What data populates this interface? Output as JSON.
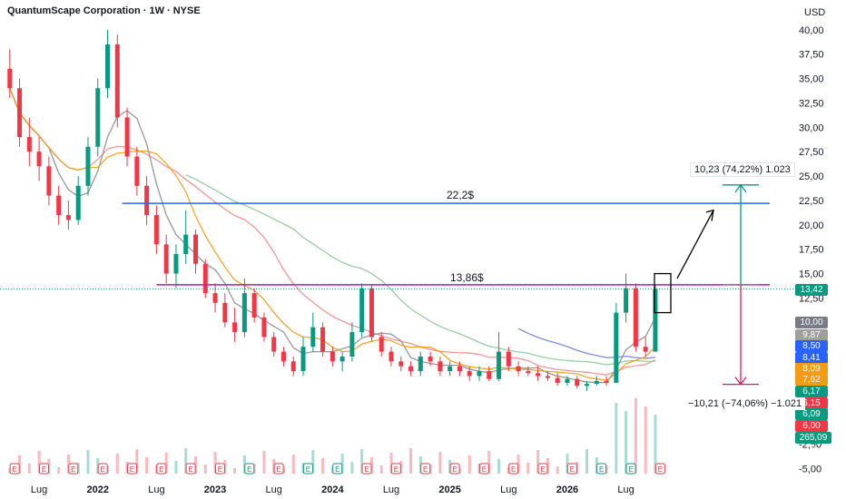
{
  "header": {
    "title": "QuantumScape Corporation · 1W · NYSE",
    "currency": "USD"
  },
  "colors": {
    "up": "#089981",
    "down": "#f23645",
    "resistance_blue": "#2962ff",
    "resistance_purple": "#9c27b0",
    "ma_orange": "#f39c12",
    "ma_gray": "#8c8c8c",
    "ma_red": "#f28b8b",
    "ma_green": "#8cc79a",
    "ma_blue": "#6b7fd6",
    "target_green": "#089981",
    "target_red": "#d81b60"
  },
  "chart_data": {
    "type": "candlestick",
    "title": "QuantumScape Corporation · 1W · NYSE",
    "ylabel": "USD",
    "ylim": [
      -5.5,
      41
    ],
    "y_ticks": [
      "40,00",
      "37,50",
      "35,00",
      "32,50",
      "30,00",
      "27,50",
      "25,00",
      "22,50",
      "20,00",
      "17,50",
      "15,00",
      "12,50",
      "10,00",
      "7,50",
      "5,00",
      "2,50",
      "0,00",
      "-2,50",
      "-5,00"
    ],
    "x_ticks": [
      "Lug",
      "2022",
      "Lug",
      "2023",
      "Lug",
      "2024",
      "Lug",
      "2025",
      "Lug",
      "2026",
      "Lug"
    ],
    "horizontal_levels": [
      {
        "label": "22,2$",
        "value": 22.2,
        "color": "#2962ff"
      },
      {
        "label": "13,86$",
        "value": 13.86,
        "color": "#9c27b0"
      }
    ],
    "measure_up": {
      "label": "10,23 (74,22%) 1.023",
      "from": 13.86,
      "to": 24.09
    },
    "measure_down": {
      "label": "−10,21 (−74,06%) −1.021",
      "from": 13.86,
      "to": 3.65
    },
    "price_badges": [
      {
        "value": "13,42",
        "color": "#089981",
        "price": 13.42
      },
      {
        "value": "10,00",
        "color": "#787b86",
        "price": 10.0
      },
      {
        "value": "9,87",
        "color": "#9e9e9e",
        "price": 8.75
      },
      {
        "value": "8,50",
        "color": "#2962ff",
        "price": 7.6
      },
      {
        "value": "8,41",
        "color": "#2962ff",
        "price": 6.45
      },
      {
        "value": "8,09",
        "color": "#f39c12",
        "price": 5.3
      },
      {
        "value": "7,62",
        "color": "#f39c12",
        "price": 4.15
      },
      {
        "value": "6,17",
        "color": "#089981",
        "price": 2.95
      },
      {
        "value": "6,15",
        "color": "#f23645",
        "price": 1.8
      },
      {
        "value": "6,09",
        "color": "#089981",
        "price": 0.6
      },
      {
        "value": "6,00",
        "color": "#f23645",
        "price": -0.55
      },
      {
        "value": "265,09 M",
        "color": "#089981",
        "price": -1.75
      }
    ],
    "candles": [
      {
        "t": 0,
        "o": 36.0,
        "h": 38.0,
        "l": 33.0,
        "c": 34.0
      },
      {
        "t": 2,
        "o": 34.0,
        "h": 35.0,
        "l": 28.0,
        "c": 29.0
      },
      {
        "t": 4,
        "o": 29.0,
        "h": 31.0,
        "l": 26.0,
        "c": 27.5
      },
      {
        "t": 6,
        "o": 27.5,
        "h": 29.0,
        "l": 24.5,
        "c": 26.0
      },
      {
        "t": 8,
        "o": 26.0,
        "h": 27.0,
        "l": 22.0,
        "c": 23.0
      },
      {
        "t": 10,
        "o": 23.0,
        "h": 24.0,
        "l": 20.0,
        "c": 21.0
      },
      {
        "t": 12,
        "o": 21.0,
        "h": 22.5,
        "l": 19.5,
        "c": 20.5
      },
      {
        "t": 14,
        "o": 20.5,
        "h": 25.0,
        "l": 20.0,
        "c": 24.0
      },
      {
        "t": 16,
        "o": 24.0,
        "h": 29.0,
        "l": 23.0,
        "c": 28.0
      },
      {
        "t": 18,
        "o": 28.0,
        "h": 35.0,
        "l": 27.0,
        "c": 34.0
      },
      {
        "t": 20,
        "o": 34.0,
        "h": 40.0,
        "l": 33.0,
        "c": 38.5
      },
      {
        "t": 22,
        "o": 38.5,
        "h": 39.5,
        "l": 30.0,
        "c": 31.0
      },
      {
        "t": 24,
        "o": 31.0,
        "h": 32.0,
        "l": 26.0,
        "c": 27.0
      },
      {
        "t": 26,
        "o": 27.0,
        "h": 28.0,
        "l": 23.0,
        "c": 24.0
      },
      {
        "t": 28,
        "o": 24.0,
        "h": 25.0,
        "l": 20.0,
        "c": 21.0
      },
      {
        "t": 30,
        "o": 21.0,
        "h": 22.0,
        "l": 17.0,
        "c": 18.0
      },
      {
        "t": 32,
        "o": 18.0,
        "h": 19.0,
        "l": 14.0,
        "c": 15.0
      },
      {
        "t": 34,
        "o": 15.0,
        "h": 18.0,
        "l": 13.5,
        "c": 17.0
      },
      {
        "t": 36,
        "o": 17.0,
        "h": 21.5,
        "l": 16.0,
        "c": 19.0
      },
      {
        "t": 38,
        "o": 19.0,
        "h": 19.5,
        "l": 15.0,
        "c": 16.0
      },
      {
        "t": 40,
        "o": 16.0,
        "h": 16.5,
        "l": 12.5,
        "c": 13.0
      },
      {
        "t": 42,
        "o": 13.0,
        "h": 14.0,
        "l": 11.0,
        "c": 12.0
      },
      {
        "t": 44,
        "o": 12.0,
        "h": 13.0,
        "l": 9.5,
        "c": 10.0
      },
      {
        "t": 46,
        "o": 10.0,
        "h": 11.5,
        "l": 8.0,
        "c": 9.0
      },
      {
        "t": 48,
        "o": 9.0,
        "h": 14.5,
        "l": 8.5,
        "c": 13.0
      },
      {
        "t": 50,
        "o": 13.0,
        "h": 13.5,
        "l": 10.0,
        "c": 10.5
      },
      {
        "t": 52,
        "o": 10.5,
        "h": 11.0,
        "l": 8.0,
        "c": 8.5
      },
      {
        "t": 54,
        "o": 8.5,
        "h": 9.0,
        "l": 6.5,
        "c": 7.0
      },
      {
        "t": 56,
        "o": 7.0,
        "h": 7.5,
        "l": 5.5,
        "c": 6.0
      },
      {
        "t": 58,
        "o": 6.0,
        "h": 6.5,
        "l": 4.5,
        "c": 5.0
      },
      {
        "t": 60,
        "o": 5.0,
        "h": 8.5,
        "l": 4.5,
        "c": 7.5
      },
      {
        "t": 62,
        "o": 7.5,
        "h": 11.0,
        "l": 7.0,
        "c": 9.5
      },
      {
        "t": 64,
        "o": 9.5,
        "h": 10.0,
        "l": 6.5,
        "c": 7.0
      },
      {
        "t": 66,
        "o": 7.0,
        "h": 7.5,
        "l": 5.5,
        "c": 6.0
      },
      {
        "t": 68,
        "o": 6.0,
        "h": 7.0,
        "l": 5.0,
        "c": 6.5
      },
      {
        "t": 70,
        "o": 6.5,
        "h": 10.0,
        "l": 6.0,
        "c": 9.0
      },
      {
        "t": 72,
        "o": 9.0,
        "h": 14.0,
        "l": 8.5,
        "c": 13.5
      },
      {
        "t": 74,
        "o": 13.5,
        "h": 13.8,
        "l": 8.0,
        "c": 8.5
      },
      {
        "t": 76,
        "o": 8.5,
        "h": 9.0,
        "l": 6.5,
        "c": 7.0
      },
      {
        "t": 78,
        "o": 7.0,
        "h": 7.5,
        "l": 5.5,
        "c": 6.0
      },
      {
        "t": 80,
        "o": 6.0,
        "h": 6.5,
        "l": 5.0,
        "c": 5.5
      },
      {
        "t": 82,
        "o": 5.5,
        "h": 6.0,
        "l": 4.5,
        "c": 5.0
      },
      {
        "t": 84,
        "o": 5.0,
        "h": 7.0,
        "l": 4.5,
        "c": 6.5
      },
      {
        "t": 86,
        "o": 6.5,
        "h": 7.0,
        "l": 5.5,
        "c": 6.0
      },
      {
        "t": 88,
        "o": 6.0,
        "h": 6.5,
        "l": 4.5,
        "c": 5.0
      },
      {
        "t": 90,
        "o": 5.0,
        "h": 6.0,
        "l": 4.5,
        "c": 5.5
      },
      {
        "t": 92,
        "o": 5.5,
        "h": 6.0,
        "l": 4.5,
        "c": 5.0
      },
      {
        "t": 94,
        "o": 5.0,
        "h": 5.5,
        "l": 4.0,
        "c": 4.5
      },
      {
        "t": 96,
        "o": 4.5,
        "h": 5.5,
        "l": 4.0,
        "c": 5.0
      },
      {
        "t": 98,
        "o": 5.0,
        "h": 5.5,
        "l": 4.0,
        "c": 4.2
      },
      {
        "t": 100,
        "o": 4.2,
        "h": 9.0,
        "l": 4.0,
        "c": 7.0
      },
      {
        "t": 102,
        "o": 7.0,
        "h": 7.5,
        "l": 5.0,
        "c": 5.5
      },
      {
        "t": 104,
        "o": 5.5,
        "h": 6.0,
        "l": 4.5,
        "c": 5.0
      },
      {
        "t": 106,
        "o": 5.0,
        "h": 5.5,
        "l": 4.5,
        "c": 4.8
      },
      {
        "t": 108,
        "o": 4.8,
        "h": 5.5,
        "l": 4.0,
        "c": 4.5
      },
      {
        "t": 110,
        "o": 4.5,
        "h": 5.0,
        "l": 4.0,
        "c": 4.3
      },
      {
        "t": 112,
        "o": 4.3,
        "h": 4.8,
        "l": 3.5,
        "c": 3.8
      },
      {
        "t": 114,
        "o": 3.8,
        "h": 4.5,
        "l": 3.5,
        "c": 4.2
      },
      {
        "t": 116,
        "o": 4.2,
        "h": 4.5,
        "l": 3.2,
        "c": 3.5
      },
      {
        "t": 118,
        "o": 3.5,
        "h": 4.0,
        "l": 3.0,
        "c": 3.7
      },
      {
        "t": 120,
        "o": 3.7,
        "h": 4.5,
        "l": 3.5,
        "c": 4.0
      },
      {
        "t": 122,
        "o": 4.0,
        "h": 4.5,
        "l": 3.5,
        "c": 3.8
      },
      {
        "t": 124,
        "o": 3.8,
        "h": 12.0,
        "l": 3.8,
        "c": 11.0
      },
      {
        "t": 126,
        "o": 11.0,
        "h": 15.0,
        "l": 10.0,
        "c": 13.5
      },
      {
        "t": 128,
        "o": 13.5,
        "h": 14.0,
        "l": 7.0,
        "c": 7.5
      },
      {
        "t": 130,
        "o": 7.5,
        "h": 8.5,
        "l": 6.5,
        "c": 7.0
      },
      {
        "t": 132,
        "o": 7.0,
        "h": 13.8,
        "l": 7.0,
        "c": 13.42
      }
    ],
    "x_tick_positions": [
      6,
      18,
      30,
      42,
      54,
      66,
      78,
      90,
      102,
      114,
      126
    ],
    "t_range": [
      -2,
      158
    ]
  }
}
